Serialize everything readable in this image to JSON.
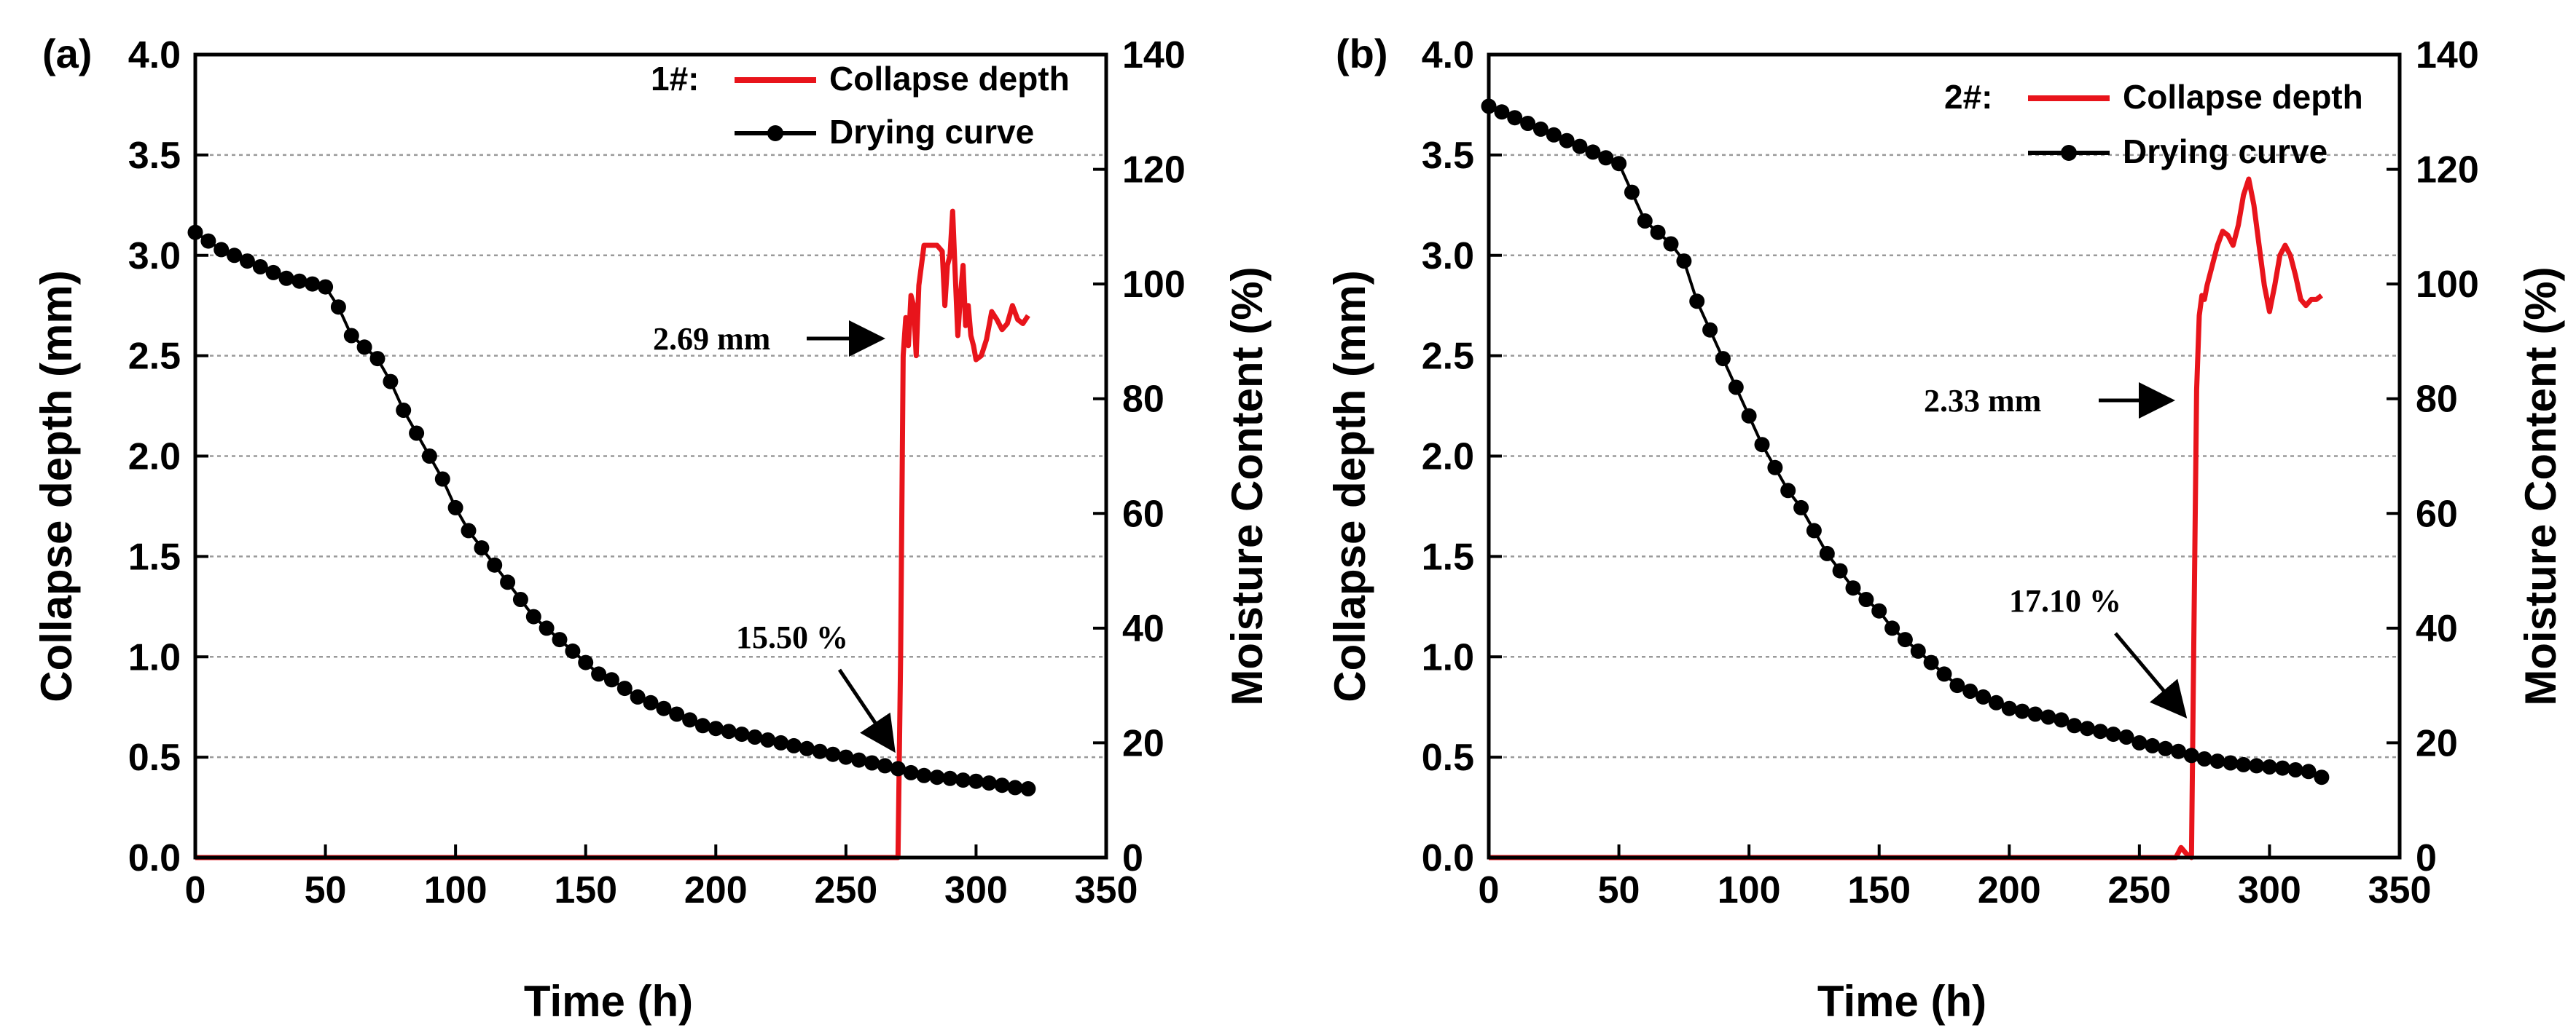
{
  "chart_data": [
    {
      "type": "line",
      "panel_label": "(a)",
      "xlabel": "Time (h)",
      "ylabel": "Collapse depth (mm)",
      "y2label": "Moisture Content (%)",
      "xlim": [
        0,
        350
      ],
      "ylim": [
        0,
        4.0
      ],
      "y2lim": [
        0,
        140
      ],
      "xticks": [
        "0",
        "50",
        "100",
        "150",
        "200",
        "250",
        "300",
        "350"
      ],
      "yticks": [
        "0.0",
        "0.5",
        "1.0",
        "1.5",
        "2.0",
        "2.5",
        "3.0",
        "3.5",
        "4.0"
      ],
      "y2ticks": [
        "0",
        "20",
        "40",
        "60",
        "80",
        "100",
        "120",
        "140"
      ],
      "grid": "horizontal dotted",
      "legend": {
        "prefix": "1#:",
        "entries": [
          "Collapse depth",
          "Drying curve"
        ],
        "placement": "top-right"
      },
      "series": [
        {
          "name": "Collapse depth",
          "axis": "left",
          "color": "#e8141b",
          "x": [
            0,
            270,
            271,
            272,
            273,
            274,
            275,
            276,
            277,
            278,
            280,
            283,
            285,
            287,
            288,
            289,
            290,
            291,
            292,
            293,
            294,
            295,
            296,
            297,
            298,
            299,
            300,
            302,
            304,
            306,
            308,
            310,
            312,
            314,
            316,
            318,
            320
          ],
          "y": [
            0,
            0,
            1.0,
            2.5,
            2.69,
            2.55,
            2.8,
            2.75,
            2.5,
            2.85,
            3.05,
            3.05,
            3.05,
            3.02,
            2.75,
            2.95,
            3.0,
            3.22,
            2.9,
            2.6,
            2.8,
            2.95,
            2.65,
            2.75,
            2.6,
            2.55,
            2.48,
            2.5,
            2.58,
            2.72,
            2.68,
            2.63,
            2.66,
            2.75,
            2.68,
            2.66,
            2.7
          ]
        },
        {
          "name": "Drying curve",
          "axis": "right",
          "color": "#000000",
          "x": [
            0,
            5,
            10,
            15,
            20,
            25,
            30,
            35,
            40,
            45,
            50,
            55,
            60,
            65,
            70,
            75,
            80,
            85,
            90,
            95,
            100,
            105,
            110,
            115,
            120,
            125,
            130,
            135,
            140,
            145,
            150,
            155,
            160,
            165,
            170,
            175,
            180,
            185,
            190,
            195,
            200,
            205,
            210,
            215,
            220,
            225,
            230,
            235,
            240,
            245,
            250,
            255,
            260,
            265,
            270,
            275,
            280,
            285,
            290,
            295,
            300,
            305,
            310,
            315,
            320
          ],
          "y": [
            109,
            107.5,
            106,
            105,
            104,
            103,
            102,
            101,
            100.5,
            100,
            99.5,
            96,
            91,
            89,
            87,
            83,
            78,
            74,
            70,
            66,
            61,
            57,
            54,
            51,
            48,
            45,
            42,
            40,
            38,
            36,
            34,
            32,
            31,
            29.5,
            28,
            27,
            26,
            25,
            24,
            23,
            22.5,
            22,
            21.5,
            21,
            20.5,
            20,
            19.5,
            19,
            18.5,
            18,
            17.5,
            17,
            16.5,
            16,
            15.5,
            14.8,
            14.3,
            14,
            13.8,
            13.5,
            13.3,
            13,
            12.6,
            12.2,
            12
          ]
        }
      ],
      "annotations": [
        "2.69 mm",
        "15.50 %"
      ]
    },
    {
      "type": "line",
      "panel_label": "(b)",
      "xlabel": "Time (h)",
      "ylabel": "Collapse depth (mm)",
      "y2label": "Moisture Content (%)",
      "xlim": [
        0,
        350
      ],
      "ylim": [
        0,
        4.0
      ],
      "y2lim": [
        0,
        140
      ],
      "xticks": [
        "0",
        "50",
        "100",
        "150",
        "200",
        "250",
        "300",
        "350"
      ],
      "yticks": [
        "0.0",
        "0.5",
        "1.0",
        "1.5",
        "2.0",
        "2.5",
        "3.0",
        "3.5",
        "4.0"
      ],
      "y2ticks": [
        "0",
        "20",
        "40",
        "60",
        "80",
        "100",
        "120",
        "140"
      ],
      "grid": "horizontal dotted",
      "legend": {
        "prefix": "2#:",
        "entries": [
          "Collapse depth",
          "Drying curve"
        ],
        "placement": "top-right"
      },
      "series": [
        {
          "name": "Collapse depth",
          "axis": "left",
          "color": "#e8141b",
          "x": [
            0,
            262,
            264,
            266,
            268,
            270,
            271,
            272,
            273,
            274,
            275,
            276,
            278,
            280,
            282,
            284,
            286,
            288,
            290,
            292,
            294,
            296,
            298,
            300,
            302,
            304,
            306,
            308,
            310,
            312,
            314,
            316,
            318,
            320
          ],
          "y": [
            0,
            0,
            0.0,
            0.05,
            0.02,
            0,
            1.2,
            2.33,
            2.7,
            2.8,
            2.78,
            2.85,
            2.95,
            3.05,
            3.12,
            3.1,
            3.05,
            3.15,
            3.3,
            3.38,
            3.25,
            3.05,
            2.85,
            2.72,
            2.85,
            3.0,
            3.05,
            3.0,
            2.9,
            2.78,
            2.75,
            2.78,
            2.78,
            2.8
          ]
        },
        {
          "name": "Drying curve",
          "axis": "right",
          "color": "#000000",
          "x": [
            0,
            5,
            10,
            15,
            20,
            25,
            30,
            35,
            40,
            45,
            50,
            55,
            60,
            65,
            70,
            75,
            80,
            85,
            90,
            95,
            100,
            105,
            110,
            115,
            120,
            125,
            130,
            135,
            140,
            145,
            150,
            155,
            160,
            165,
            170,
            175,
            180,
            185,
            190,
            195,
            200,
            205,
            210,
            215,
            220,
            225,
            230,
            235,
            240,
            245,
            250,
            255,
            260,
            265,
            270,
            275,
            280,
            285,
            290,
            295,
            300,
            305,
            310,
            315,
            320
          ],
          "y": [
            131,
            130,
            129,
            128,
            127,
            126,
            125,
            124,
            123,
            122,
            121,
            116,
            111,
            109,
            107,
            104,
            97,
            92,
            87,
            82,
            77,
            72,
            68,
            64,
            61,
            57,
            53,
            50,
            47,
            45,
            43,
            40,
            38,
            36,
            34,
            32,
            30,
            29,
            28,
            27,
            26,
            25.5,
            25,
            24.5,
            24,
            23,
            22.5,
            22,
            21.5,
            21,
            20,
            19.5,
            19,
            18.5,
            17.8,
            17.2,
            16.8,
            16.5,
            16.2,
            16,
            15.8,
            15.6,
            15.3,
            15,
            14
          ]
        }
      ],
      "annotations": [
        "2.33 mm",
        "17.10 %"
      ]
    }
  ]
}
